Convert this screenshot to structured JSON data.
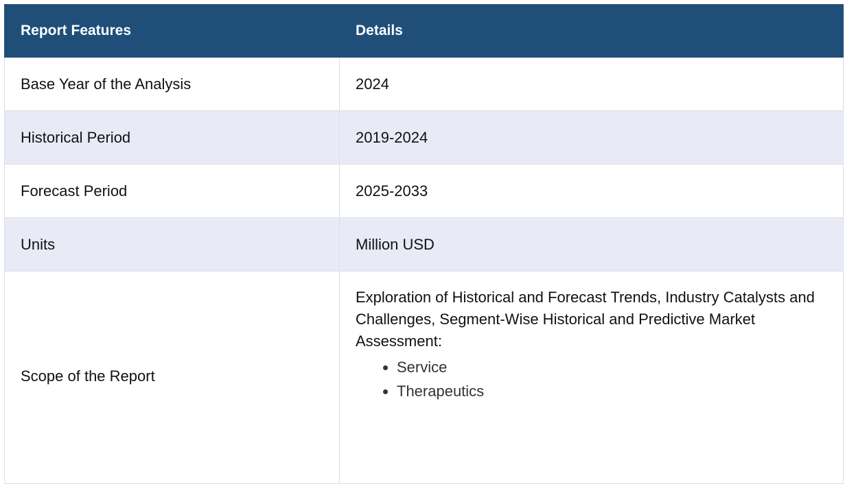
{
  "table": {
    "headers": [
      "Report Features",
      "Details"
    ],
    "rows": [
      {
        "feature": "Base Year of the Analysis",
        "detail": "2024"
      },
      {
        "feature": "Historical Period",
        "detail": "2019-2024"
      },
      {
        "feature": "Forecast Period",
        "detail": "2025-2033"
      },
      {
        "feature": "Units",
        "detail": "Million USD"
      }
    ],
    "scope": {
      "feature": "Scope of the Report",
      "detail": "Exploration of Historical and Forecast Trends, Industry Catalysts and Challenges, Segment-Wise Historical and Predictive Market Assessment:",
      "bullets": [
        "Service",
        "Therapeutics"
      ]
    }
  },
  "colors": {
    "header_bg": "#1f4e79",
    "alt_row_bg": "#e8eaf6",
    "border": "#dcdfe6"
  }
}
